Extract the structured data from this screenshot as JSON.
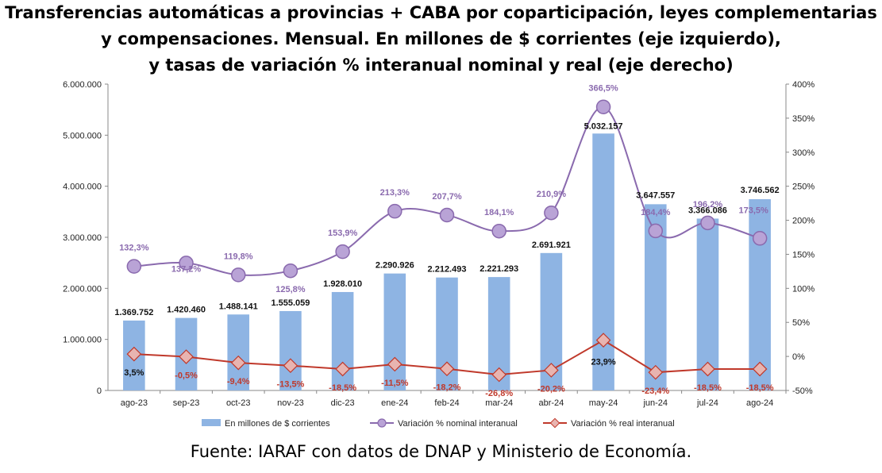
{
  "title": {
    "line1": "Transferencias automáticas a provincias + CABA por coparticipación, leyes complementarias",
    "line2": "y compensaciones. Mensual. En millones de $ corrientes (eje izquierdo),",
    "line3": "y tasas de variación % interanual nominal y real (eje derecho)"
  },
  "source": "Fuente: IARAF con datos de DNAP y Ministerio de Economía.",
  "colors": {
    "bars": "#8eb4e3",
    "nominal": "#8a6aae",
    "nominal_marker": "#b9a3d6",
    "real": "#c0392b",
    "real_marker": "#e8b4b0"
  },
  "chart_data": {
    "type": "bar",
    "categories": [
      "ago-23",
      "sep-23",
      "oct-23",
      "nov-23",
      "dic-23",
      "ene-24",
      "feb-24",
      "mar-24",
      "abr-24",
      "may-24",
      "jun-24",
      "jul-24",
      "ago-24"
    ],
    "ylim": [
      0,
      6000000
    ],
    "y_ticks": [
      "0",
      "1.000.000",
      "2.000.000",
      "3.000.000",
      "4.000.000",
      "5.000.000",
      "6.000.000"
    ],
    "y2lim": [
      -50,
      400
    ],
    "y2_ticks": [
      "-50%",
      "0%",
      "50%",
      "100%",
      "150%",
      "200%",
      "250%",
      "300%",
      "350%",
      "400%"
    ],
    "legend_position": "bottom",
    "series": [
      {
        "name": "En millones de $ corrientes",
        "kind": "bar",
        "axis": "left",
        "values": [
          1369752,
          1420460,
          1488141,
          1555059,
          1928010,
          2290926,
          2212493,
          2221293,
          2691921,
          5032157,
          3647557,
          3366086,
          3746562
        ],
        "labels": [
          "1.369.752",
          "1.420.460",
          "1.488.141",
          "1.555.059",
          "1.928.010",
          "2.290.926",
          "2.212.493",
          "2.221.293",
          "2.691.921",
          "5.032.157",
          "3.647.557",
          "3.366.086",
          "3.746.562"
        ]
      },
      {
        "name": "Variación % nominal interanual",
        "kind": "line",
        "axis": "right",
        "values": [
          132.3,
          137.2,
          119.8,
          125.8,
          153.9,
          213.3,
          207.7,
          184.1,
          210.9,
          366.5,
          184.4,
          196.2,
          173.5
        ],
        "labels": [
          "132,3%",
          "137,2%",
          "119,8%",
          "125,8%",
          "153,9%",
          "213,3%",
          "207,7%",
          "184,1%",
          "210,9%",
          "366,5%",
          "184,4%",
          "196,2%",
          "173,5%"
        ]
      },
      {
        "name": "Variación % real interanual",
        "kind": "line",
        "axis": "right",
        "values": [
          3.5,
          -0.5,
          -9.4,
          -13.5,
          -18.5,
          -11.5,
          -18.2,
          -26.8,
          -20.2,
          23.9,
          -23.4,
          -18.5,
          -18.5
        ],
        "labels": [
          "3,5%",
          "-0,5%",
          "-9,4%",
          "-13,5%",
          "-18,5%",
          "-11,5%",
          "-18,2%",
          "-26,8%",
          "-20,2%",
          "23,9%",
          "-23,4%",
          "-18,5%",
          "-18,5%"
        ]
      }
    ]
  }
}
